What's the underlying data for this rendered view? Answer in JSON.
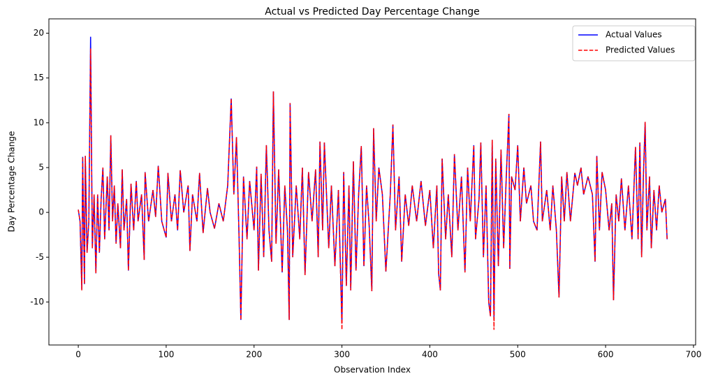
{
  "chart_data": {
    "type": "line",
    "title": "Actual vs Predicted Day Percentage Change",
    "x_label": "Observation Index",
    "y_label": "Day Percentage Change",
    "x": [
      0,
      2,
      4,
      5,
      7,
      8,
      10,
      12,
      14,
      16,
      18,
      20,
      22,
      24,
      26,
      28,
      30,
      33,
      35,
      37,
      39,
      41,
      43,
      45,
      48,
      50,
      52,
      55,
      57,
      60,
      63,
      66,
      68,
      72,
      75,
      76,
      80,
      85,
      88,
      91,
      95,
      100,
      102,
      106,
      110,
      113,
      116,
      120,
      125,
      127,
      130,
      135,
      138,
      142,
      147,
      150,
      155,
      160,
      165,
      170,
      174,
      177,
      180,
      183,
      185,
      188,
      192,
      195,
      200,
      203,
      205,
      208,
      211,
      214,
      217,
      220,
      222,
      225,
      228,
      232,
      235,
      238,
      240,
      241,
      244,
      248,
      252,
      255,
      258,
      262,
      266,
      270,
      273,
      275,
      278,
      280,
      285,
      288,
      292,
      296,
      300,
      302,
      305,
      308,
      310,
      313,
      316,
      319,
      322,
      325,
      328,
      331,
      334,
      336,
      339,
      342,
      346,
      350,
      355,
      358,
      361,
      365,
      368,
      372,
      376,
      380,
      385,
      390,
      395,
      400,
      404,
      408,
      410,
      412,
      414,
      418,
      421,
      425,
      428,
      432,
      436,
      440,
      443,
      446,
      450,
      452,
      456,
      458,
      461,
      464,
      467,
      469,
      471,
      473,
      475,
      478,
      481,
      484,
      487,
      490,
      491,
      493,
      497,
      500,
      503,
      507,
      510,
      515,
      518,
      522,
      526,
      528,
      533,
      537,
      540,
      544,
      547,
      550,
      553,
      556,
      560,
      565,
      568,
      572,
      575,
      580,
      585,
      588,
      590,
      593,
      596,
      600,
      604,
      607,
      609,
      612,
      615,
      618,
      622,
      626,
      630,
      634,
      637,
      639,
      641,
      643,
      645,
      647,
      650,
      652,
      655,
      658,
      661,
      664,
      668,
      670
    ],
    "series": [
      {
        "name": "Actual Values",
        "color": "blue",
        "dash": false,
        "values": [
          0.3,
          -1,
          -8.6,
          6.2,
          -8,
          6.3,
          -4.5,
          -1,
          19.6,
          -4,
          2,
          -6.8,
          2,
          -4.5,
          1.5,
          5,
          -3,
          4,
          -2,
          8.6,
          -1,
          3,
          -3.5,
          1,
          -4,
          4.8,
          -2,
          1.5,
          -6.5,
          3.2,
          -2,
          3.5,
          -1,
          2,
          -5.3,
          4.5,
          -1,
          2.5,
          -0.5,
          5.2,
          -1,
          -2.8,
          4.4,
          -1,
          2,
          -2,
          4.7,
          0,
          3,
          -4.3,
          2,
          -1,
          4.4,
          -2.3,
          2.7,
          0,
          -1.8,
          1,
          -1,
          3,
          12.7,
          2,
          8.4,
          -3,
          -12,
          4,
          -3,
          3.5,
          -2,
          5.1,
          -6.5,
          4.3,
          -5,
          7.5,
          -2,
          -5.5,
          13.5,
          -3.5,
          4.8,
          -6.7,
          3,
          -2,
          -12,
          12.2,
          -5,
          3,
          -3,
          5,
          -7,
          4.5,
          -1,
          4.8,
          -5,
          7.9,
          -2,
          7.8,
          -4,
          3,
          -6,
          2.5,
          -12.4,
          4.5,
          -8.2,
          3,
          -8.7,
          5.7,
          -6.5,
          2,
          7.4,
          -6,
          3,
          -1.5,
          -8.8,
          9.4,
          -1,
          5,
          2,
          -6.6,
          2,
          9.8,
          -2,
          4,
          -5.5,
          2,
          -1.5,
          3,
          -1,
          3.5,
          -1.5,
          2.5,
          -4,
          3,
          -6.8,
          -8.7,
          6,
          -3,
          2,
          -5,
          6.5,
          -2,
          4,
          -6.7,
          5,
          -1,
          7.5,
          -3,
          1.5,
          7.8,
          -5,
          3,
          -10,
          -11.6,
          8.1,
          -12,
          6,
          -6,
          7,
          -4,
          4,
          11,
          -6.3,
          4,
          2.5,
          7.5,
          -1,
          5,
          1,
          3,
          -1,
          -2,
          7.9,
          -1,
          2.5,
          -2,
          3,
          -2,
          -9.5,
          4,
          -1,
          4.5,
          -1,
          4.4,
          3,
          5,
          2,
          4,
          2,
          -5.5,
          6.3,
          -2,
          4.5,
          2.5,
          -2,
          1,
          -9.8,
          2,
          -1,
          3.8,
          -2,
          3,
          -3,
          7.3,
          -3,
          7.8,
          -5,
          4,
          10.1,
          -2,
          4,
          -4,
          2.5,
          -2,
          3,
          0,
          1.5,
          -3
        ]
      },
      {
        "name": "Predicted Values",
        "color": "red",
        "dash": true,
        "values": [
          0.3,
          -1,
          -8.7,
          6.2,
          -8,
          6.3,
          -4.5,
          -1,
          18.3,
          -4,
          2,
          -6.8,
          2,
          -4.5,
          1.5,
          5,
          -3,
          4,
          -2,
          8.6,
          -1,
          3,
          -3.5,
          1,
          -4,
          4.8,
          -2,
          1.5,
          -6.5,
          3.2,
          -2,
          3.5,
          -1,
          2,
          -5.3,
          4.5,
          -1,
          2.5,
          -0.5,
          5.2,
          -1,
          -2.8,
          4.4,
          -1,
          2,
          -2,
          4.7,
          0,
          3,
          -4.3,
          2,
          -1,
          4.4,
          -2.3,
          2.7,
          0,
          -1.8,
          1,
          -1,
          3,
          12.7,
          2,
          8.4,
          -3,
          -12,
          4,
          -3,
          3.5,
          -2,
          5.1,
          -6.5,
          4.3,
          -5,
          7.5,
          -2,
          -5.5,
          13.5,
          -3.5,
          4.8,
          -6.7,
          3,
          -2,
          -12,
          12.2,
          -5,
          3,
          -3,
          5,
          -7,
          4.5,
          -1,
          4.8,
          -5,
          7.9,
          -2,
          7.8,
          -4,
          3,
          -6,
          2.5,
          -13.1,
          4.5,
          -8.2,
          3,
          -8.7,
          5.7,
          -6.5,
          2,
          7.4,
          -6,
          3,
          -1.5,
          -8.8,
          9.4,
          -1,
          5,
          2,
          -6.6,
          2,
          9.8,
          -2,
          4,
          -5.5,
          2,
          -1.5,
          3,
          -1,
          3.5,
          -1.5,
          2.5,
          -4,
          3,
          -6.8,
          -8.7,
          6,
          -3,
          2,
          -5,
          6.5,
          -2,
          4,
          -6.7,
          5,
          -1,
          7.5,
          -3,
          1.5,
          7.8,
          -5,
          3,
          -10,
          -11.6,
          8.1,
          -13.1,
          6,
          -6,
          7,
          -4,
          4,
          11,
          -6.3,
          4,
          2.5,
          7.5,
          -1,
          5,
          1,
          3,
          -1,
          -2,
          7.9,
          -1,
          2.5,
          -2,
          3,
          -2,
          -9.5,
          4,
          -1,
          4.5,
          -1,
          4.4,
          3,
          5,
          2,
          4,
          2,
          -5.5,
          6.3,
          -2,
          4.5,
          2.5,
          -2,
          1,
          -9.8,
          2,
          -1,
          3.8,
          -2,
          3,
          -3,
          7.3,
          -3,
          7.8,
          -5,
          4,
          10.1,
          -2,
          4,
          -4,
          2.5,
          -2,
          3,
          0,
          1.5,
          -3
        ]
      }
    ],
    "xlim": [
      -33.45,
      702.45
    ],
    "xticks": [
      0,
      100,
      200,
      300,
      400,
      500,
      600,
      700
    ],
    "ylim": [
      -14.8,
      21.6
    ],
    "yticks": [
      -10,
      -5,
      0,
      5,
      10,
      15,
      20
    ],
    "grid": false,
    "legend": "upper right"
  }
}
